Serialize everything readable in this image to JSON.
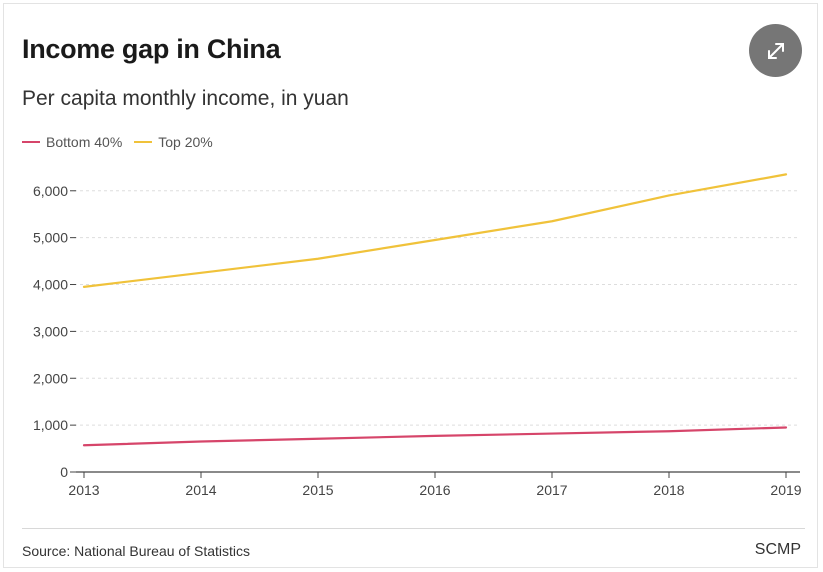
{
  "header": {
    "title": "Income gap in China",
    "subtitle": "Per capita monthly income, in yuan"
  },
  "toolbar": {
    "expand_icon": "expand-arrows-icon"
  },
  "footer": {
    "source": "Source: National Bureau of Statistics",
    "brand": "SCMP"
  },
  "colors": {
    "bottom40": "#d6456a",
    "top20": "#f0c23a",
    "grid": "#dddddd",
    "axis": "#444444"
  },
  "chart_data": {
    "type": "line",
    "title": "Income gap in China",
    "subtitle": "Per capita monthly income, in yuan",
    "xlabel": "",
    "ylabel": "",
    "x": [
      "2013",
      "2014",
      "2015",
      "2016",
      "2017",
      "2018",
      "2019"
    ],
    "series": [
      {
        "name": "Bottom 40%",
        "color": "#d6456a",
        "values": [
          570,
          650,
          710,
          770,
          820,
          870,
          950
        ]
      },
      {
        "name": "Top 20%",
        "color": "#f0c23a",
        "values": [
          3950,
          4250,
          4550,
          4950,
          5350,
          5900,
          6350
        ]
      }
    ],
    "yticks": [
      0,
      1000,
      2000,
      3000,
      4000,
      5000,
      6000
    ],
    "ytick_labels": [
      "0",
      "1,000",
      "2,000",
      "3,000",
      "4,000",
      "5,000",
      "6,000"
    ],
    "ylim": [
      0,
      6000
    ],
    "grid": true,
    "legend_position": "top-left"
  }
}
